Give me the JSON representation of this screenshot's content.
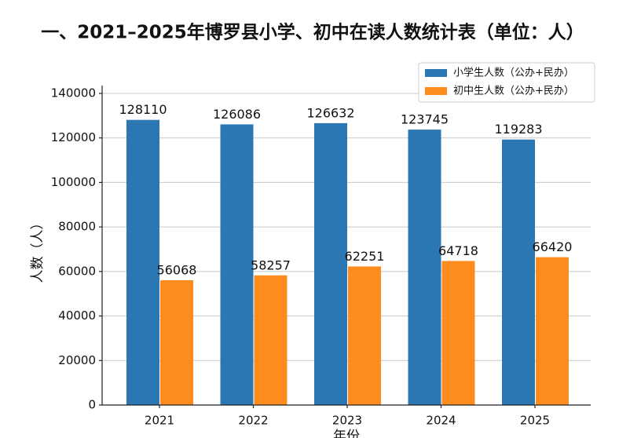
{
  "chart_data": {
    "type": "bar",
    "title": "一、2021–2025年博罗县小学、初中在读人数统计表（单位：人）",
    "y_label": "人数（人）",
    "x_label": "年份",
    "categories": [
      "2021",
      "2022",
      "2023",
      "2024",
      "2025"
    ],
    "series": [
      {
        "name": "小学生人数（公办+民办）",
        "color": "#2a77b4",
        "values": [
          128110,
          126086,
          126632,
          123745,
          119283
        ]
      },
      {
        "name": "初中生人数（公办+民办）",
        "color": "#fe8b1d",
        "values": [
          56068,
          58257,
          62251,
          64718,
          66420
        ]
      }
    ],
    "ylim": [
      0,
      140000
    ],
    "yticks": [
      0,
      20000,
      40000,
      60000,
      80000,
      100000,
      120000,
      140000
    ],
    "grid": true,
    "legend": "upper right"
  }
}
